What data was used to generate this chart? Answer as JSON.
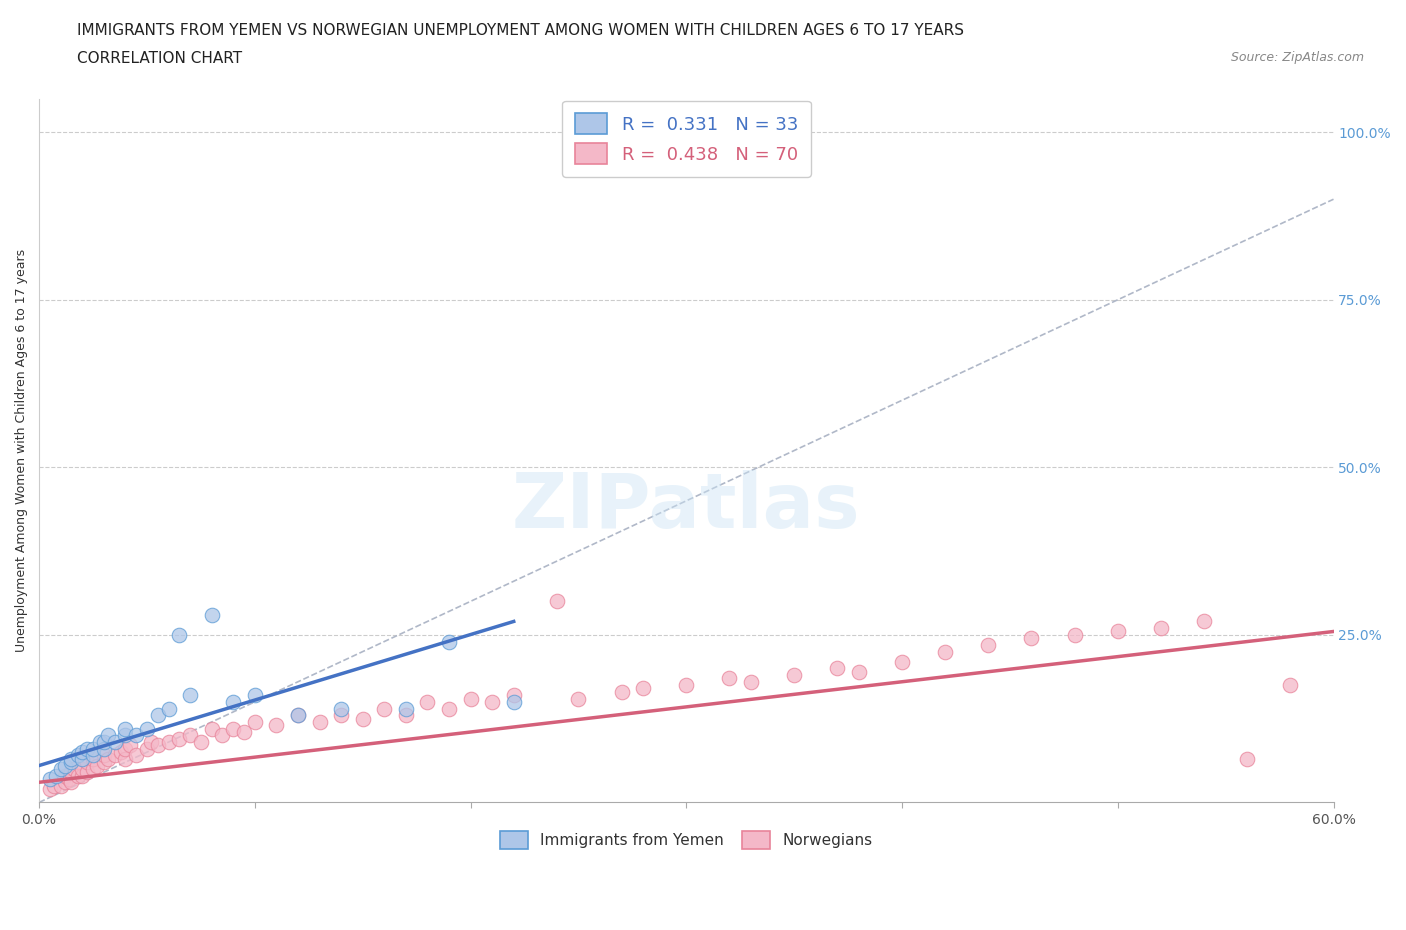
{
  "title_line1": "IMMIGRANTS FROM YEMEN VS NORWEGIAN UNEMPLOYMENT AMONG WOMEN WITH CHILDREN AGES 6 TO 17 YEARS",
  "title_line2": "CORRELATION CHART",
  "source": "Source: ZipAtlas.com",
  "ylabel_label": "Unemployment Among Women with Children Ages 6 to 17 years",
  "right_yticks": [
    "100.0%",
    "75.0%",
    "50.0%",
    "25.0%"
  ],
  "right_ytick_vals": [
    1.0,
    0.75,
    0.5,
    0.25
  ],
  "xlim": [
    0.0,
    0.6
  ],
  "ylim": [
    0.0,
    1.05
  ],
  "legend_r1": "R =  0.331   N = 33",
  "legend_r2": "R =  0.438   N = 70",
  "color_yemen": "#aec6e8",
  "color_norway": "#f4b8c8",
  "color_yemen_dark": "#5b9bd5",
  "color_norway_dark": "#e8849a",
  "line_color_yemen": "#4472c4",
  "line_color_norway": "#d4607a",
  "line_dashed_color": "#b0b8c8",
  "background_color": "#ffffff",
  "watermark": "ZIPatlas",
  "yemen_scatter_x": [
    0.005,
    0.008,
    0.01,
    0.012,
    0.015,
    0.015,
    0.018,
    0.02,
    0.02,
    0.022,
    0.025,
    0.025,
    0.028,
    0.03,
    0.03,
    0.032,
    0.035,
    0.04,
    0.04,
    0.045,
    0.05,
    0.055,
    0.06,
    0.065,
    0.07,
    0.08,
    0.09,
    0.1,
    0.12,
    0.14,
    0.17,
    0.19,
    0.22
  ],
  "yemen_scatter_y": [
    0.035,
    0.04,
    0.05,
    0.055,
    0.06,
    0.065,
    0.07,
    0.065,
    0.075,
    0.08,
    0.07,
    0.08,
    0.09,
    0.08,
    0.09,
    0.1,
    0.09,
    0.1,
    0.11,
    0.1,
    0.11,
    0.13,
    0.14,
    0.25,
    0.16,
    0.28,
    0.15,
    0.16,
    0.13,
    0.14,
    0.14,
    0.24,
    0.15
  ],
  "norway_scatter_x": [
    0.005,
    0.007,
    0.01,
    0.012,
    0.012,
    0.014,
    0.015,
    0.015,
    0.016,
    0.018,
    0.02,
    0.02,
    0.022,
    0.022,
    0.025,
    0.025,
    0.027,
    0.03,
    0.03,
    0.032,
    0.035,
    0.038,
    0.04,
    0.04,
    0.042,
    0.045,
    0.05,
    0.052,
    0.055,
    0.06,
    0.065,
    0.07,
    0.075,
    0.08,
    0.085,
    0.09,
    0.095,
    0.1,
    0.11,
    0.12,
    0.13,
    0.14,
    0.15,
    0.16,
    0.17,
    0.18,
    0.19,
    0.2,
    0.21,
    0.22,
    0.24,
    0.25,
    0.27,
    0.28,
    0.3,
    0.32,
    0.33,
    0.35,
    0.37,
    0.38,
    0.4,
    0.42,
    0.44,
    0.46,
    0.48,
    0.5,
    0.52,
    0.54,
    0.56,
    0.58
  ],
  "norway_scatter_y": [
    0.02,
    0.025,
    0.025,
    0.03,
    0.04,
    0.035,
    0.03,
    0.045,
    0.05,
    0.04,
    0.04,
    0.05,
    0.045,
    0.06,
    0.05,
    0.065,
    0.055,
    0.06,
    0.07,
    0.065,
    0.07,
    0.075,
    0.065,
    0.08,
    0.085,
    0.07,
    0.08,
    0.09,
    0.085,
    0.09,
    0.095,
    0.1,
    0.09,
    0.11,
    0.1,
    0.11,
    0.105,
    0.12,
    0.115,
    0.13,
    0.12,
    0.13,
    0.125,
    0.14,
    0.13,
    0.15,
    0.14,
    0.155,
    0.15,
    0.16,
    0.3,
    0.155,
    0.165,
    0.17,
    0.175,
    0.185,
    0.18,
    0.19,
    0.2,
    0.195,
    0.21,
    0.225,
    0.235,
    0.245,
    0.25,
    0.255,
    0.26,
    0.27,
    0.065,
    0.175
  ],
  "yemen_line_x": [
    0.0,
    0.22
  ],
  "yemen_line_y": [
    0.055,
    0.27
  ],
  "norway_line_x": [
    0.0,
    0.6
  ],
  "norway_line_y": [
    0.03,
    0.255
  ],
  "ref_line_x": [
    0.0,
    0.6
  ],
  "ref_line_y": [
    0.0,
    0.9
  ],
  "title_fontsize": 11,
  "subtitle_fontsize": 11,
  "axis_label_fontsize": 9,
  "tick_fontsize": 10,
  "legend_fontsize": 13
}
